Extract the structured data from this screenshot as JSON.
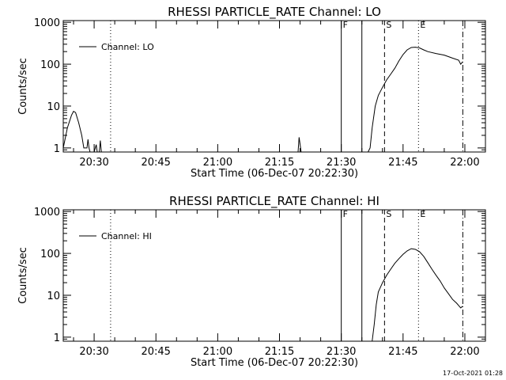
{
  "footer_timestamp": "17-Oct-2021 01:28",
  "chart_data": [
    {
      "type": "line",
      "title": "RHESSI PARTICLE_RATE Channel: LO",
      "xlabel": "Start Time (06-Dec-07 20:22:30)",
      "ylabel": "Counts/sec",
      "yscale": "log",
      "xlim": [
        "20:22:30",
        "22:05:00"
      ],
      "ylim": [
        0.8,
        1100
      ],
      "xticks": [
        "20:30",
        "20:45",
        "21:00",
        "21:15",
        "21:30",
        "21:45",
        "22:00"
      ],
      "yticks": [
        "1",
        "10",
        "100",
        "1000"
      ],
      "legend": "top-left",
      "series": [
        {
          "name": "Channel: LO",
          "points": [
            [
              "20:22:30",
              1.0
            ],
            [
              "20:23:30",
              3.0
            ],
            [
              "20:24:30",
              6.0
            ],
            [
              "20:25:00",
              7.5
            ],
            [
              "20:25:30",
              7.0
            ],
            [
              "20:26:15",
              4.0
            ],
            [
              "20:27:00",
              2.0
            ],
            [
              "20:27:30",
              1.0
            ],
            [
              "20:28:15",
              1.0
            ],
            [
              "20:28:30",
              1.6
            ],
            [
              "20:28:45",
              1.0
            ],
            [
              "20:29:00",
              0.8
            ],
            [
              "20:30:00",
              0.8
            ],
            [
              "20:30:30",
              1.2
            ],
            [
              "20:30:45",
              0.8
            ],
            [
              "20:31:15",
              0.8
            ],
            [
              "20:31:30",
              1.5
            ],
            [
              "20:31:45",
              0.8
            ],
            [
              "21:19:30",
              0.8
            ],
            [
              "21:19:45",
              1.8
            ],
            [
              "21:20:15",
              0.8
            ],
            [
              "21:36:30",
              0.8
            ],
            [
              "21:37:00",
              1.0
            ],
            [
              "21:37:30",
              3.0
            ],
            [
              "21:38:15",
              10.0
            ],
            [
              "21:39:00",
              18.0
            ],
            [
              "21:40:00",
              28.0
            ],
            [
              "21:41:00",
              42.0
            ],
            [
              "21:42:00",
              58.0
            ],
            [
              "21:43:00",
              80.0
            ],
            [
              "21:44:00",
              120.0
            ],
            [
              "21:45:00",
              170.0
            ],
            [
              "21:46:00",
              220.0
            ],
            [
              "21:47:00",
              250.0
            ],
            [
              "21:48:00",
              255.0
            ],
            [
              "21:49:00",
              245.0
            ],
            [
              "21:50:00",
              220.0
            ],
            [
              "21:51:00",
              200.0
            ],
            [
              "21:53:00",
              180.0
            ],
            [
              "21:55:00",
              165.0
            ],
            [
              "21:57:00",
              140.0
            ],
            [
              "21:58:30",
              125.0
            ],
            [
              "21:59:00",
              100.0
            ],
            [
              "21:59:30",
              115.0
            ]
          ]
        }
      ],
      "annotations": [
        {
          "label": "",
          "time": "20:34:00",
          "style": "dotted"
        },
        {
          "label": "F",
          "time": "21:30:00",
          "style": "solid"
        },
        {
          "label": "",
          "time": "21:35:00",
          "style": "solid"
        },
        {
          "label": "S",
          "time": "21:40:30",
          "style": "dashed"
        },
        {
          "label": "E",
          "time": "21:48:45",
          "style": "dotted"
        },
        {
          "label": "",
          "time": "21:59:30",
          "style": "dashdot"
        }
      ]
    },
    {
      "type": "line",
      "title": "RHESSI PARTICLE_RATE Channel: HI",
      "xlabel": "Start Time (06-Dec-07 20:22:30)",
      "ylabel": "Counts/sec",
      "yscale": "log",
      "xlim": [
        "20:22:30",
        "22:05:00"
      ],
      "ylim": [
        0.8,
        1100
      ],
      "xticks": [
        "20:30",
        "20:45",
        "21:00",
        "21:15",
        "21:30",
        "21:45",
        "22:00"
      ],
      "yticks": [
        "1",
        "10",
        "100",
        "1000"
      ],
      "legend": "top-left",
      "series": [
        {
          "name": "Channel: HI",
          "points": [
            [
              "21:37:30",
              0.8
            ],
            [
              "21:38:00",
              2.0
            ],
            [
              "21:38:30",
              6.0
            ],
            [
              "21:39:00",
              12.0
            ],
            [
              "21:40:00",
              20.0
            ],
            [
              "21:41:00",
              30.0
            ],
            [
              "21:42:00",
              42.0
            ],
            [
              "21:43:00",
              58.0
            ],
            [
              "21:44:00",
              75.0
            ],
            [
              "21:45:00",
              95.0
            ],
            [
              "21:46:00",
              115.0
            ],
            [
              "21:47:00",
              130.0
            ],
            [
              "21:48:00",
              125.0
            ],
            [
              "21:49:00",
              110.0
            ],
            [
              "21:50:00",
              85.0
            ],
            [
              "21:51:00",
              60.0
            ],
            [
              "21:52:00",
              42.0
            ],
            [
              "21:53:00",
              30.0
            ],
            [
              "21:54:00",
              22.0
            ],
            [
              "21:55:00",
              15.0
            ],
            [
              "21:56:00",
              11.0
            ],
            [
              "21:57:00",
              8.0
            ],
            [
              "21:58:00",
              6.5
            ],
            [
              "21:59:00",
              5.0
            ],
            [
              "21:59:30",
              5.5
            ]
          ]
        }
      ],
      "annotations": [
        {
          "label": "",
          "time": "20:34:00",
          "style": "dotted"
        },
        {
          "label": "F",
          "time": "21:30:00",
          "style": "solid"
        },
        {
          "label": "",
          "time": "21:35:00",
          "style": "solid"
        },
        {
          "label": "S",
          "time": "21:40:30",
          "style": "dashed"
        },
        {
          "label": "E",
          "time": "21:48:45",
          "style": "dotted"
        },
        {
          "label": "",
          "time": "21:59:30",
          "style": "dashdot"
        }
      ]
    }
  ]
}
